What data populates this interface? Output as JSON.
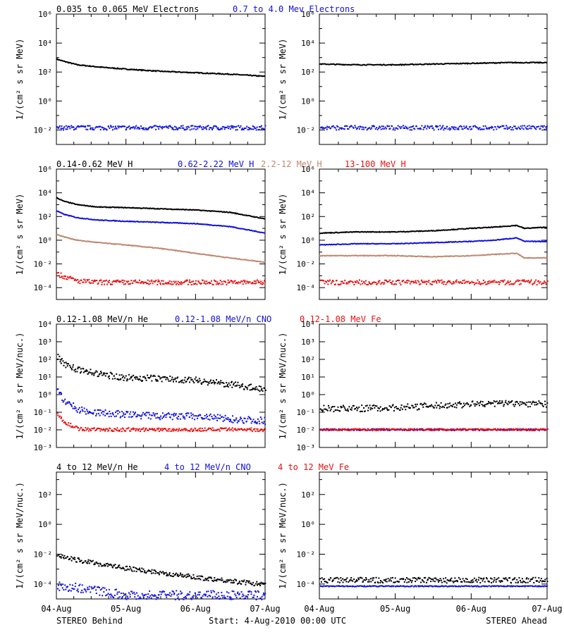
{
  "colors": {
    "black": "#000000",
    "blue": "#1010e0",
    "tan": "#c08870",
    "red": "#e81010"
  },
  "footer": {
    "left": "STEREO Behind",
    "center": "Start:  4-Aug-2010 00:00 UTC",
    "right": "STEREO Ahead"
  },
  "chart_data": [
    {
      "type": "scatter",
      "row": 0,
      "side": "behind",
      "legend": [
        {
          "label": "0.035 to 0.065 MeV Electrons",
          "color": "black"
        },
        {
          "label": "0.7 to 4.0 Mev Electrons",
          "color": "blue"
        }
      ],
      "ylabel": "1/(cm² s sr MeV)",
      "ylim_log10": [
        -3,
        6
      ],
      "ytick_exponents": [
        -2,
        0,
        2,
        4,
        6
      ],
      "x": [
        0,
        0.1,
        0.3,
        0.6,
        1.0,
        1.5,
        2.0,
        2.5,
        3.0
      ],
      "series": [
        {
          "color": "black",
          "style": "line",
          "log10": [
            2.9,
            2.75,
            2.5,
            2.35,
            2.2,
            2.05,
            1.95,
            1.85,
            1.7
          ]
        },
        {
          "color": "blue",
          "style": "scatter",
          "log10": [
            -1.8,
            -1.8,
            -1.8,
            -1.8,
            -1.8,
            -1.8,
            -1.8,
            -1.8,
            -1.8
          ],
          "spread": 0.15
        }
      ]
    },
    {
      "type": "scatter",
      "row": 0,
      "side": "ahead",
      "ylabel": "1/(cm² s sr MeV)",
      "ylim_log10": [
        -3,
        6
      ],
      "ytick_exponents": [
        -2,
        0,
        2,
        4,
        6
      ],
      "x": [
        0,
        0.5,
        1.0,
        1.5,
        2.0,
        2.5,
        3.0
      ],
      "series": [
        {
          "color": "black",
          "style": "line",
          "log10": [
            2.55,
            2.5,
            2.5,
            2.55,
            2.6,
            2.65,
            2.65
          ]
        },
        {
          "color": "blue",
          "style": "scatter",
          "log10": [
            -1.8,
            -1.8,
            -1.8,
            -1.8,
            -1.8,
            -1.8,
            -1.8
          ],
          "spread": 0.15
        }
      ]
    },
    {
      "type": "scatter",
      "row": 1,
      "side": "behind",
      "legend": [
        {
          "label": "0.14-0.62 MeV H",
          "color": "black"
        },
        {
          "label": "0.62-2.22 MeV H",
          "color": "blue"
        },
        {
          "label": "2.2-12 MeV H",
          "color": "tan"
        },
        {
          "label": "13-100 MeV H",
          "color": "red"
        }
      ],
      "ylabel": "1/(cm² s sr MeV)",
      "ylim_log10": [
        -5,
        6
      ],
      "ytick_exponents": [
        -4,
        -2,
        0,
        2,
        4,
        6
      ],
      "x": [
        0,
        0.1,
        0.3,
        0.6,
        1.0,
        1.5,
        2.0,
        2.5,
        3.0
      ],
      "series": [
        {
          "color": "black",
          "style": "line",
          "log10": [
            3.6,
            3.3,
            3.0,
            2.8,
            2.75,
            2.65,
            2.55,
            2.35,
            1.8
          ]
        },
        {
          "color": "blue",
          "style": "line",
          "log10": [
            2.5,
            2.2,
            1.9,
            1.7,
            1.6,
            1.5,
            1.4,
            1.15,
            0.6
          ]
        },
        {
          "color": "tan",
          "style": "line",
          "log10": [
            0.5,
            0.3,
            0.0,
            -0.2,
            -0.4,
            -0.7,
            -1.1,
            -1.5,
            -1.85
          ]
        },
        {
          "color": "red",
          "style": "scatter",
          "log10": [
            -2.8,
            -3.0,
            -3.4,
            -3.5,
            -3.5,
            -3.5,
            -3.5,
            -3.5,
            -3.5
          ],
          "spread": 0.2
        }
      ]
    },
    {
      "type": "scatter",
      "row": 1,
      "side": "ahead",
      "ylabel": "1/(cm² s sr MeV)",
      "ylim_log10": [
        -5,
        6
      ],
      "ytick_exponents": [
        -4,
        -2,
        0,
        2,
        4,
        6
      ],
      "x": [
        0,
        0.5,
        1.0,
        1.5,
        2.0,
        2.3,
        2.6,
        2.7,
        3.0
      ],
      "series": [
        {
          "color": "black",
          "style": "line",
          "log10": [
            0.6,
            0.7,
            0.7,
            0.8,
            1.0,
            1.1,
            1.25,
            1.0,
            1.1
          ]
        },
        {
          "color": "blue",
          "style": "line",
          "log10": [
            -0.4,
            -0.3,
            -0.3,
            -0.2,
            -0.1,
            0.0,
            0.2,
            -0.1,
            -0.1
          ]
        },
        {
          "color": "tan",
          "style": "line",
          "log10": [
            -1.3,
            -1.3,
            -1.3,
            -1.4,
            -1.3,
            -1.2,
            -1.1,
            -1.5,
            -1.5
          ]
        },
        {
          "color": "red",
          "style": "scatter",
          "log10": [
            -3.5,
            -3.5,
            -3.5,
            -3.5,
            -3.5,
            -3.5,
            -3.5,
            -3.5,
            -3.5
          ],
          "spread": 0.2
        }
      ]
    },
    {
      "type": "scatter",
      "row": 2,
      "side": "behind",
      "legend": [
        {
          "label": "0.12-1.08 MeV/n He",
          "color": "black"
        },
        {
          "label": "0.12-1.08 MeV/n CNO",
          "color": "blue"
        },
        {
          "label": "0.12-1.08 MeV Fe",
          "color": "red"
        }
      ],
      "ylabel": "1/(cm² s sr MeV/nuc.)",
      "ylim_log10": [
        -3,
        4
      ],
      "ytick_exponents": [
        -3,
        -2,
        -1,
        0,
        1,
        2,
        3,
        4
      ],
      "x": [
        0,
        0.1,
        0.3,
        0.6,
        1.0,
        1.5,
        2.0,
        2.5,
        3.0
      ],
      "series": [
        {
          "color": "black",
          "style": "scatter",
          "log10": [
            2.2,
            1.8,
            1.45,
            1.2,
            1.0,
            0.95,
            0.85,
            0.6,
            0.35
          ],
          "spread": 0.18
        },
        {
          "color": "blue",
          "style": "scatter",
          "log10": [
            0.3,
            -0.3,
            -0.8,
            -1.0,
            -1.1,
            -1.2,
            -1.2,
            -1.35,
            -1.45
          ],
          "spread": 0.2
        },
        {
          "color": "red",
          "style": "scatter",
          "log10": [
            -1.0,
            -1.5,
            -1.9,
            -1.95,
            -1.95,
            -1.95,
            -1.95,
            -1.95,
            -1.95
          ],
          "spread": 0.1
        }
      ]
    },
    {
      "type": "scatter",
      "row": 2,
      "side": "ahead",
      "ylabel": "1/(cm² s sr MeV/nuc.)",
      "ylim_log10": [
        -3,
        4
      ],
      "ytick_exponents": [
        -3,
        -2,
        -1,
        0,
        1,
        2,
        3,
        4
      ],
      "x": [
        0,
        0.5,
        1.0,
        1.5,
        2.0,
        2.5,
        3.0
      ],
      "series": [
        {
          "color": "black",
          "style": "scatter",
          "log10": [
            -0.75,
            -0.75,
            -0.7,
            -0.6,
            -0.5,
            -0.45,
            -0.5
          ],
          "spread": 0.18
        },
        {
          "color": "blue",
          "style": "scatter",
          "log10": [
            -1.95,
            -1.95,
            -1.95,
            -1.95,
            -1.95,
            -1.95,
            -1.95
          ],
          "spread": 0.05
        },
        {
          "color": "red",
          "style": "scatter",
          "log10": [
            -1.95,
            -1.95,
            -1.95,
            -1.95,
            -1.95,
            -1.95,
            -1.95
          ],
          "spread": 0.05
        }
      ]
    },
    {
      "type": "scatter",
      "row": 3,
      "side": "behind",
      "legend": [
        {
          "label": "4 to 12 MeV/n He",
          "color": "black"
        },
        {
          "label": "4 to 12 MeV/n CNO",
          "color": "blue"
        },
        {
          "label": "4 to 12 MeV Fe",
          "color": "red"
        }
      ],
      "ylabel": "1/(cm² s sr MeV/nuc.)",
      "ylim_log10": [
        -5,
        3.5
      ],
      "ytick_exponents": [
        -4,
        -2,
        0,
        2
      ],
      "x": [
        0,
        0.3,
        0.6,
        1.0,
        1.5,
        2.0,
        2.5,
        3.0
      ],
      "series": [
        {
          "color": "black",
          "style": "scatter",
          "log10": [
            -2.1,
            -2.35,
            -2.6,
            -2.9,
            -3.2,
            -3.5,
            -3.75,
            -4.0
          ],
          "spread": 0.15
        },
        {
          "color": "blue",
          "style": "scatter",
          "log10": [
            -4.1,
            -4.2,
            -4.4,
            -4.7,
            -4.7,
            -4.7,
            -4.7,
            -4.7
          ],
          "spread": 0.3
        }
      ]
    },
    {
      "type": "scatter",
      "row": 3,
      "side": "ahead",
      "ylabel": "1/(cm² s sr MeV/nuc.)",
      "ylim_log10": [
        -5,
        3.5
      ],
      "ytick_exponents": [
        -4,
        -2,
        0,
        2
      ],
      "x": [
        0,
        0.5,
        1.0,
        1.5,
        2.0,
        2.5,
        3.0
      ],
      "series": [
        {
          "color": "black",
          "style": "scatter",
          "log10": [
            -3.7,
            -3.7,
            -3.7,
            -3.7,
            -3.7,
            -3.7,
            -3.7
          ],
          "spread": 0.18
        },
        {
          "color": "blue",
          "style": "scatter",
          "log10": [
            -4.1,
            -4.1,
            -4.1,
            -4.1,
            -4.1,
            -4.1,
            -4.1
          ],
          "spread": 0.03
        }
      ]
    }
  ],
  "xaxis": {
    "tick_labels": [
      "04-Aug",
      "05-Aug",
      "06-Aug",
      "07-Aug"
    ],
    "days": [
      0,
      1,
      2,
      3
    ]
  }
}
